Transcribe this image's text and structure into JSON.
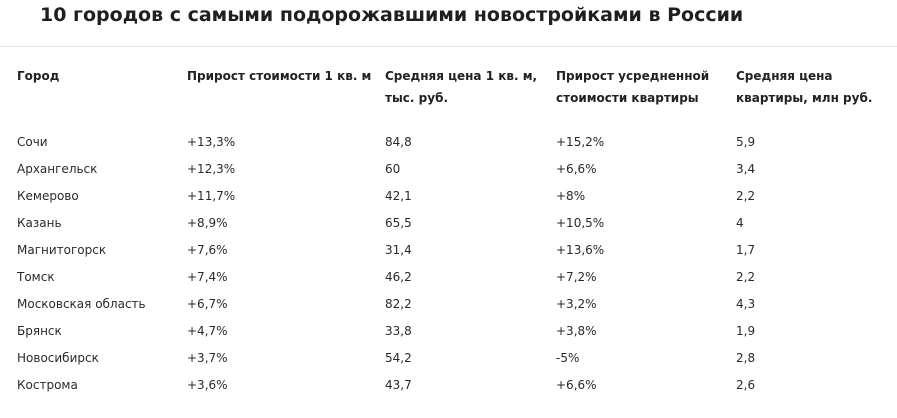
{
  "title": "10 городов с самыми подорожавшими новостройками в России",
  "table": {
    "headers": [
      "Город",
      "Прирост стоимости 1 кв. м",
      "Средняя цена 1 кв. м, тыс. руб.",
      "Прирост усредненной стоимости квартиры",
      "Средняя цена квартиры, млн руб."
    ],
    "rows": [
      [
        "Сочи",
        "+13,3%",
        "84,8",
        "+15,2%",
        "5,9"
      ],
      [
        "Архангельск",
        "+12,3%",
        "60",
        "+6,6%",
        "3,4"
      ],
      [
        "Кемерово",
        "+11,7%",
        "42,1",
        "+8%",
        "2,2"
      ],
      [
        "Казань",
        "+8,9%",
        "65,5",
        "+10,5%",
        "4"
      ],
      [
        "Магнитогорск",
        "+7,6%",
        "31,4",
        "+13,6%",
        "1,7"
      ],
      [
        "Томск",
        "+7,4%",
        "46,2",
        "+7,2%",
        "2,2"
      ],
      [
        "Московская область",
        "+6,7%",
        "82,2",
        "+3,2%",
        "4,3"
      ],
      [
        "Брянск",
        "+4,7%",
        "33,8",
        "+3,8%",
        "1,9"
      ],
      [
        "Новосибирск",
        "+3,7%",
        "54,2",
        "-5%",
        "2,8"
      ],
      [
        "Кострома",
        "+3,6%",
        "43,7",
        "+6,6%",
        "2,6"
      ]
    ]
  }
}
